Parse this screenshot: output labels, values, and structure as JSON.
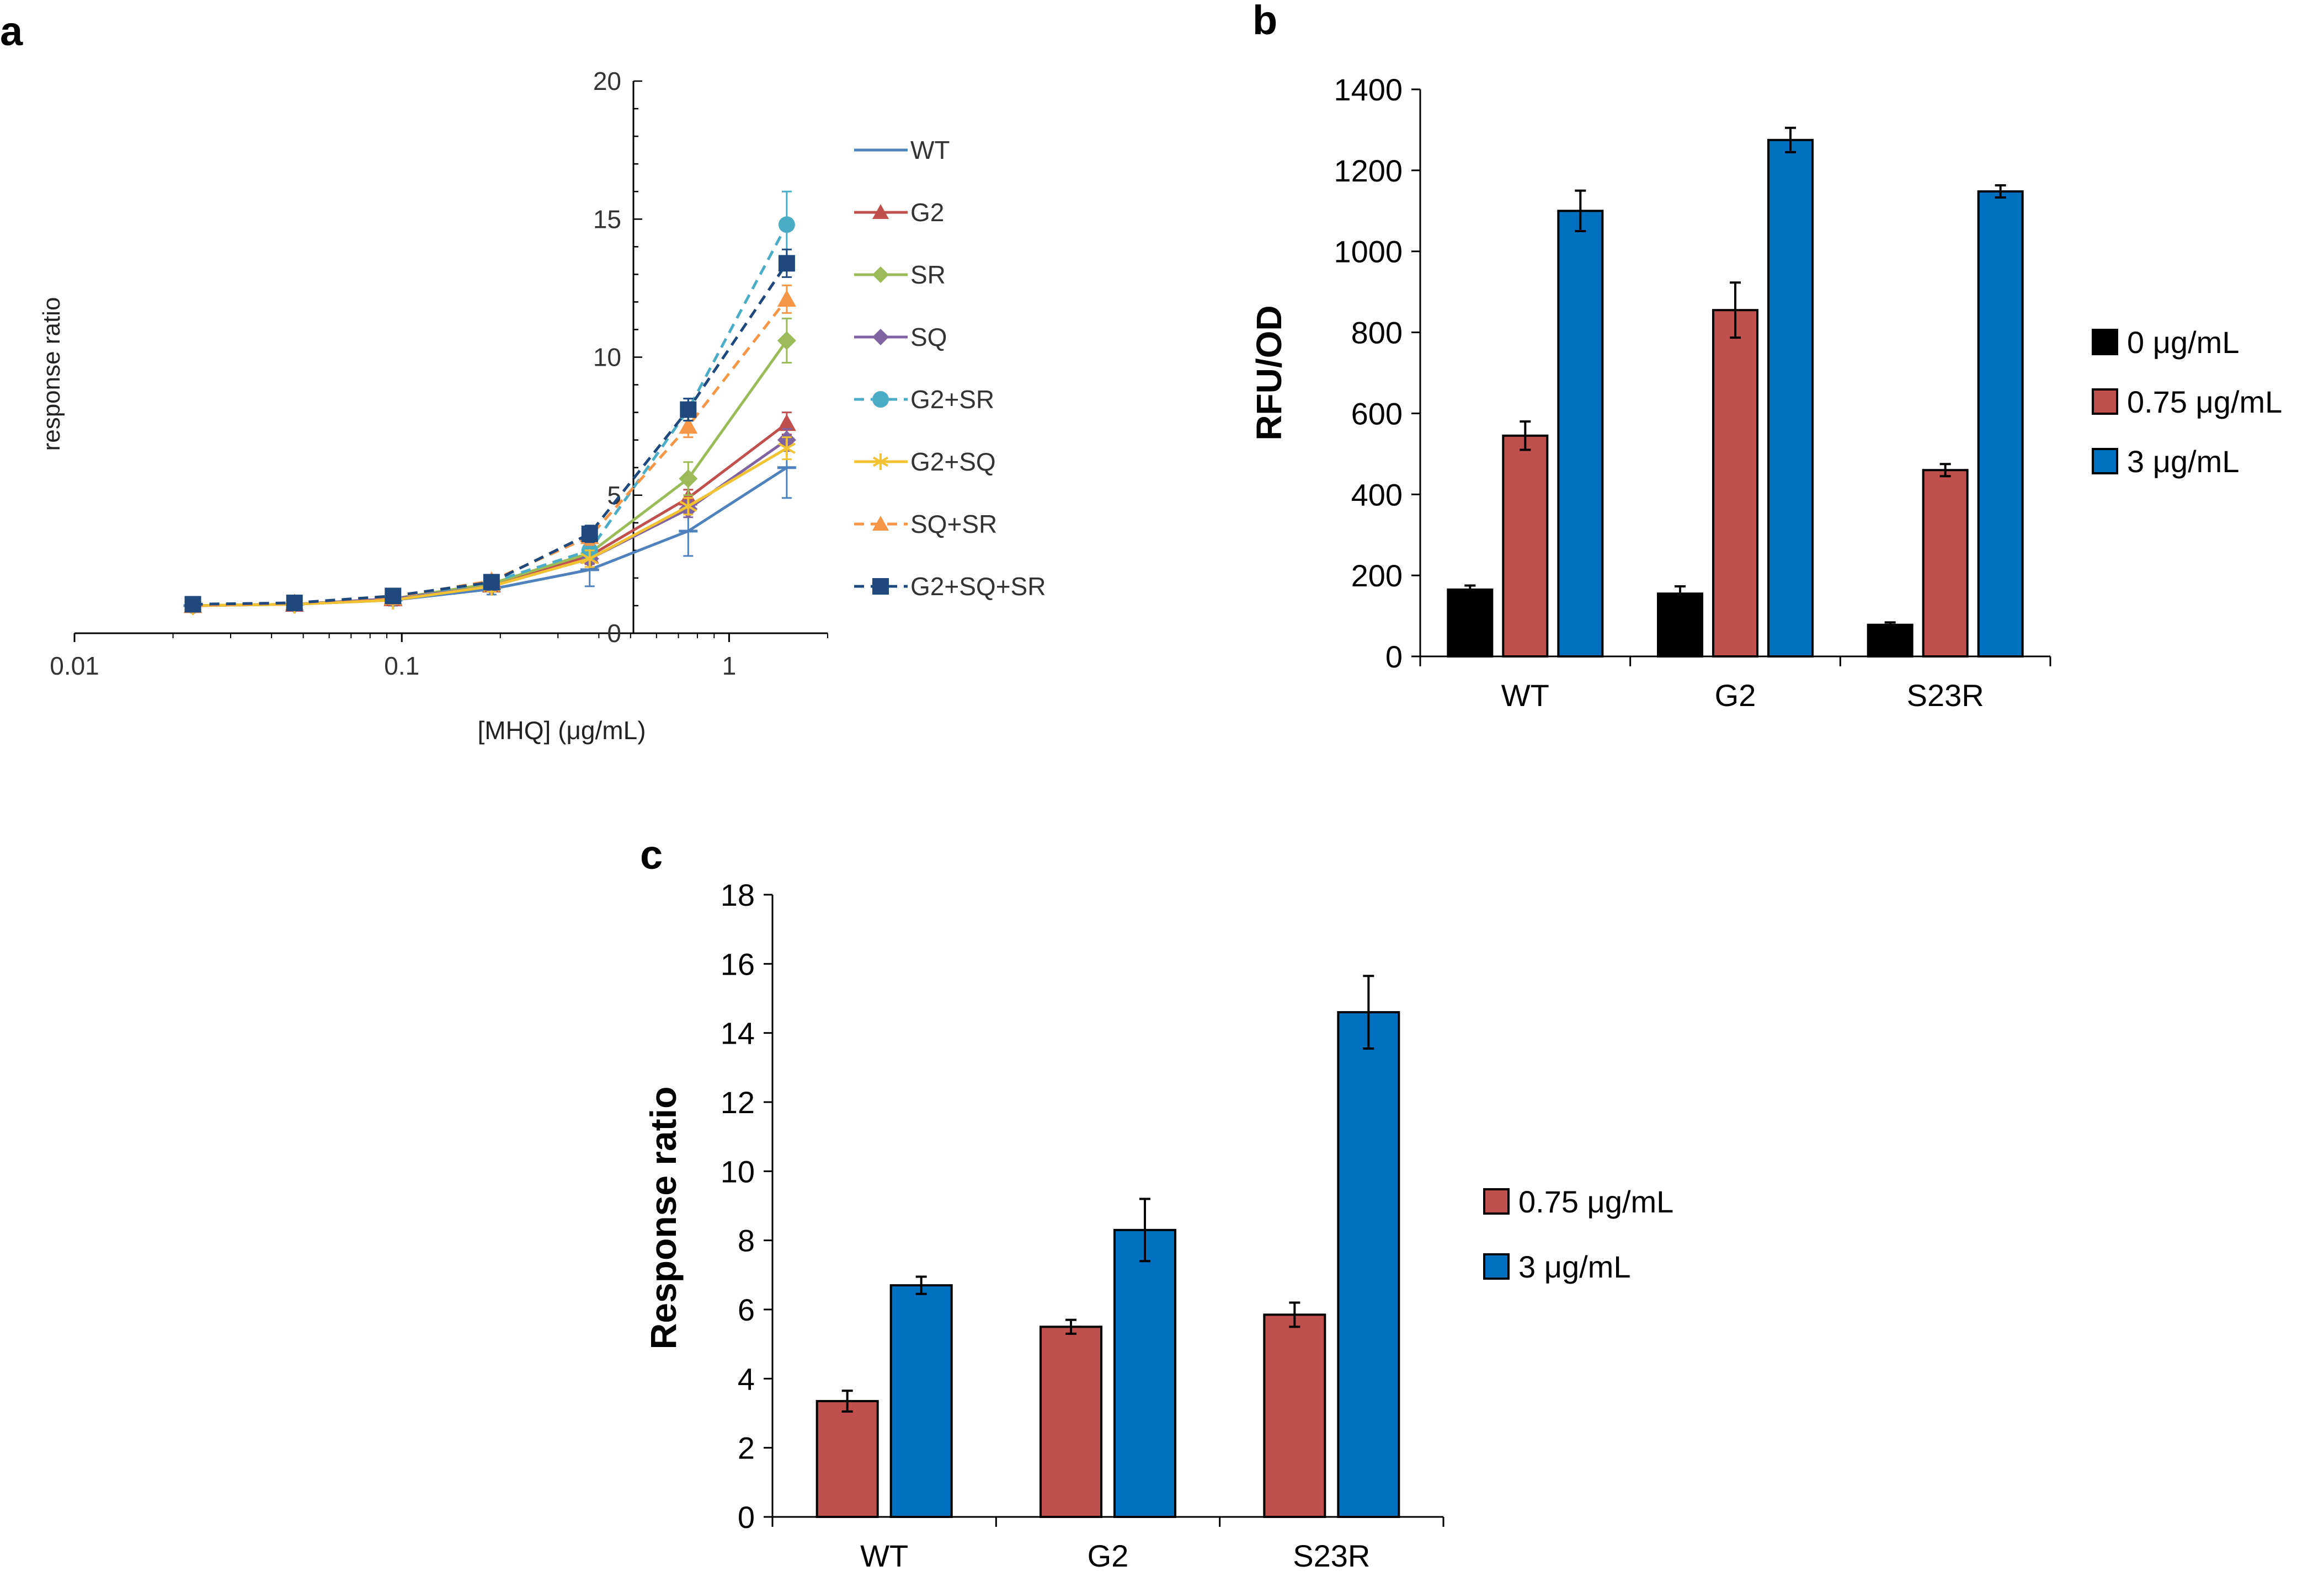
{
  "chart_data": [
    {
      "panel": "a",
      "type": "line",
      "xscale": "log",
      "xlabel": "[MHQ] (μg/mL)",
      "ylabel": "response ratio",
      "xlim": [
        0.01,
        2
      ],
      "ylim": [
        0,
        20
      ],
      "xticks": [
        0.01,
        0.1,
        1
      ],
      "xtick_labels": [
        "0.01",
        "0.1",
        "1"
      ],
      "yticks": [
        0,
        5,
        10,
        15,
        20
      ],
      "ytick_labels": [
        "0",
        "5",
        "10",
        "15",
        "20"
      ],
      "y_axis_crossing_x": 0.5,
      "legend_position": "right",
      "x": [
        0.023,
        0.047,
        0.094,
        0.188,
        0.375,
        0.75,
        1.5
      ],
      "series": [
        {
          "name": "WT",
          "color": "#4F81BD",
          "dash": "solid",
          "marker": "hline",
          "values": [
            1.0,
            1.05,
            1.2,
            1.6,
            2.3,
            3.7,
            6.0
          ],
          "errors": [
            0.15,
            0.15,
            0.2,
            0.2,
            0.6,
            0.9,
            1.1
          ]
        },
        {
          "name": "G2",
          "color": "#C0504D",
          "dash": "solid",
          "marker": "triangle",
          "values": [
            1.0,
            1.05,
            1.25,
            1.75,
            2.8,
            4.9,
            7.6
          ],
          "errors": [
            0.1,
            0.1,
            0.2,
            0.2,
            0.3,
            0.3,
            0.4
          ]
        },
        {
          "name": "SR",
          "color": "#9BBB59",
          "dash": "solid",
          "marker": "diamond",
          "values": [
            1.0,
            1.05,
            1.25,
            1.8,
            2.9,
            5.6,
            10.6
          ],
          "errors": [
            0.1,
            0.1,
            0.15,
            0.2,
            0.3,
            0.6,
            0.8
          ]
        },
        {
          "name": "SQ",
          "color": "#8064A2",
          "dash": "solid",
          "marker": "diamond",
          "values": [
            1.0,
            1.05,
            1.25,
            1.7,
            2.7,
            4.5,
            7.0
          ],
          "errors": [
            0.1,
            0.1,
            0.15,
            0.2,
            0.3,
            0.3,
            0.4
          ]
        },
        {
          "name": "G2+SR",
          "color": "#4BACC6",
          "dash": "dashed",
          "marker": "circle",
          "values": [
            1.0,
            1.1,
            1.3,
            1.85,
            3.0,
            8.1,
            14.8
          ],
          "errors": [
            0.1,
            0.1,
            0.15,
            0.2,
            0.3,
            0.4,
            1.2
          ]
        },
        {
          "name": "G2+SQ",
          "color": "#F1C232",
          "dash": "solid",
          "marker": "star",
          "values": [
            1.0,
            1.05,
            1.2,
            1.7,
            2.7,
            4.6,
            6.7
          ],
          "errors": [
            0.1,
            0.1,
            0.15,
            0.2,
            0.3,
            0.3,
            0.4
          ]
        },
        {
          "name": "SQ+SR",
          "color": "#F79646",
          "dash": "dashed",
          "marker": "triangle",
          "values": [
            1.0,
            1.1,
            1.3,
            1.9,
            3.5,
            7.5,
            12.1
          ],
          "errors": [
            0.1,
            0.1,
            0.15,
            0.2,
            0.3,
            0.4,
            0.5
          ]
        },
        {
          "name": "G2+SQ+SR",
          "color": "#1F497D",
          "dash": "dashed",
          "marker": "square",
          "values": [
            1.05,
            1.1,
            1.35,
            1.85,
            3.6,
            8.1,
            13.4
          ],
          "errors": [
            0.1,
            0.1,
            0.15,
            0.2,
            0.3,
            0.4,
            0.5
          ]
        }
      ]
    },
    {
      "panel": "b",
      "type": "bar",
      "ylabel": "RFU/OD",
      "ylim": [
        0,
        1400
      ],
      "yticks": [
        0,
        200,
        400,
        600,
        800,
        1000,
        1200,
        1400
      ],
      "ytick_labels": [
        "0",
        "200",
        "400",
        "600",
        "800",
        "1000",
        "1200",
        "1400"
      ],
      "categories": [
        "WT",
        "G2",
        "S23R"
      ],
      "legend_position": "right",
      "series": [
        {
          "name": "0 μg/mL",
          "color": "#000000",
          "values": [
            165,
            155,
            78
          ],
          "errors": [
            10,
            18,
            6
          ]
        },
        {
          "name": "0.75 μg/mL",
          "color": "#C0504D",
          "values": [
            545,
            855,
            460
          ],
          "errors": [
            35,
            68,
            15
          ]
        },
        {
          "name": "3 μg/mL",
          "color": "#0070C0",
          "values": [
            1100,
            1275,
            1148
          ],
          "errors": [
            50,
            30,
            15
          ]
        }
      ]
    },
    {
      "panel": "c",
      "type": "bar",
      "ylabel": "Response ratio",
      "ylim": [
        0,
        18
      ],
      "yticks": [
        0,
        2,
        4,
        6,
        8,
        10,
        12,
        14,
        16,
        18
      ],
      "ytick_labels": [
        "0",
        "2",
        "4",
        "6",
        "8",
        "10",
        "12",
        "14",
        "16",
        "18"
      ],
      "categories": [
        "WT",
        "G2",
        "S23R"
      ],
      "legend_position": "right",
      "series": [
        {
          "name": "0.75 μg/mL",
          "color": "#C0504D",
          "values": [
            3.35,
            5.5,
            5.85
          ],
          "errors": [
            0.3,
            0.2,
            0.35
          ]
        },
        {
          "name": "3 μg/mL",
          "color": "#0070C0",
          "values": [
            6.7,
            8.3,
            14.6
          ],
          "errors": [
            0.25,
            0.9,
            1.05
          ]
        }
      ]
    }
  ]
}
